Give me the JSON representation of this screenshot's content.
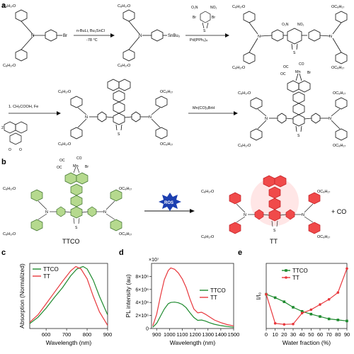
{
  "panels": {
    "a": "a",
    "b": "b",
    "c": "c",
    "d": "d",
    "e": "e"
  },
  "scheme_a": {
    "substituent": "C₈H₁₇O",
    "oc8h17": "OC₈H₁₇",
    "br": "Br",
    "snbu3": "SnBu₃",
    "step1_reagent": "n-BuLi, Bu₃SnCl",
    "step1_temp": "-78 °C",
    "step2_reagent": "Pd(PPh₃)₄",
    "no2": "O₂N",
    "no2_right": "NO₂",
    "step3_reagent_1": "1. CH₃COOH, Fe",
    "step3_reagent_2": "2.",
    "step4_reagent": "Mn(CO)₅BrH",
    "n": "N",
    "s": "S",
    "o": "O",
    "oc": "OC",
    "co": "CO",
    "mn": "Mn"
  },
  "scheme_b": {
    "ros": "ROS",
    "left_name": "TTCO",
    "right_name": "TT",
    "plus_co": "+ CO"
  },
  "colors": {
    "ttco": "#1e8a2e",
    "tt": "#e8383d",
    "green_fill": "#b5d98e",
    "red_fill": "#f04a4a",
    "ros_fill": "#1c3fb0"
  },
  "chart_data": [
    {
      "type": "line",
      "panel": "c",
      "xlabel": "Wavelength (nm)",
      "ylabel": "Absorption (Normalized)",
      "xlim": [
        520,
        900
      ],
      "ylim": [
        0,
        1.05
      ],
      "xticks": [
        600,
        700,
        800,
        900
      ],
      "legend": "top-left",
      "series": [
        {
          "name": "TTCO",
          "color": "#1e8a2e",
          "x": [
            520,
            560,
            600,
            640,
            680,
            720,
            750,
            780,
            800,
            830,
            860,
            900
          ],
          "y": [
            0.08,
            0.18,
            0.33,
            0.5,
            0.66,
            0.85,
            0.96,
            1.0,
            0.96,
            0.78,
            0.52,
            0.22
          ]
        },
        {
          "name": "TT",
          "color": "#e8383d",
          "x": [
            520,
            560,
            600,
            640,
            680,
            720,
            745,
            770,
            800,
            830,
            860,
            900
          ],
          "y": [
            0.1,
            0.22,
            0.4,
            0.58,
            0.76,
            0.93,
            1.0,
            0.96,
            0.8,
            0.52,
            0.27,
            0.05
          ]
        }
      ]
    },
    {
      "type": "line",
      "panel": "d",
      "xlabel": "Wavelength (nm)",
      "ylabel": "PL intensity (au)",
      "ylim": [
        0,
        10000000
      ],
      "xlim": [
        860,
        1500
      ],
      "xticks": [
        900,
        1000,
        1100,
        1200,
        1300,
        1400,
        1500
      ],
      "yticks": [
        0,
        2000000,
        4000000,
        6000000,
        8000000
      ],
      "ytick_labels": [
        "0",
        "2×10⁶",
        "4×10⁶",
        "6×10⁶",
        "8×10⁶"
      ],
      "scale_label": "×10⁷",
      "legend": "right",
      "series": [
        {
          "name": "TTCO",
          "color": "#1e8a2e",
          "x": [
            870,
            900,
            930,
            960,
            990,
            1010,
            1040,
            1070,
            1100,
            1130,
            1160,
            1190,
            1220,
            1250,
            1280,
            1310,
            1350,
            1400,
            1450,
            1500
          ],
          "y": [
            200000,
            800000,
            1900000,
            3000000,
            3800000,
            4000000,
            4050000,
            3950000,
            3700000,
            3200000,
            2400000,
            1700000,
            1250000,
            1300000,
            1150000,
            900000,
            650000,
            450000,
            300000,
            200000
          ]
        },
        {
          "name": "TT",
          "color": "#e8383d",
          "x": [
            870,
            900,
            930,
            960,
            990,
            1010,
            1040,
            1070,
            1100,
            1130,
            1160,
            1190,
            1220,
            1250,
            1280,
            1310,
            1350,
            1400,
            1450,
            1500
          ],
          "y": [
            400000,
            2200000,
            5000000,
            7500000,
            8900000,
            9300000,
            9100000,
            8500000,
            7600000,
            6300000,
            4500000,
            3000000,
            2400000,
            2500000,
            2200000,
            1800000,
            1300000,
            900000,
            600000,
            400000
          ]
        }
      ]
    },
    {
      "type": "line",
      "panel": "e",
      "xlabel": "Water fraction (%)",
      "ylabel": "I/I₀",
      "xlim": [
        0,
        90
      ],
      "ylim": [
        0,
        1.9
      ],
      "xticks": [
        0,
        10,
        20,
        30,
        40,
        50,
        60,
        70,
        80,
        90
      ],
      "legend": "top-center",
      "series": [
        {
          "name": "TTCO",
          "color": "#1e8a2e",
          "x": [
            0,
            10,
            20,
            30,
            40,
            50,
            60,
            70,
            80,
            90
          ],
          "y": [
            1.0,
            0.9,
            0.78,
            0.62,
            0.5,
            0.42,
            0.35,
            0.28,
            0.25,
            0.22
          ]
        },
        {
          "name": "TT",
          "color": "#e8383d",
          "x": [
            0,
            10,
            20,
            30,
            40,
            50,
            60,
            70,
            80,
            90
          ],
          "y": [
            1.0,
            0.15,
            0.12,
            0.13,
            0.45,
            0.55,
            0.7,
            0.85,
            1.05,
            1.75
          ]
        }
      ]
    }
  ]
}
